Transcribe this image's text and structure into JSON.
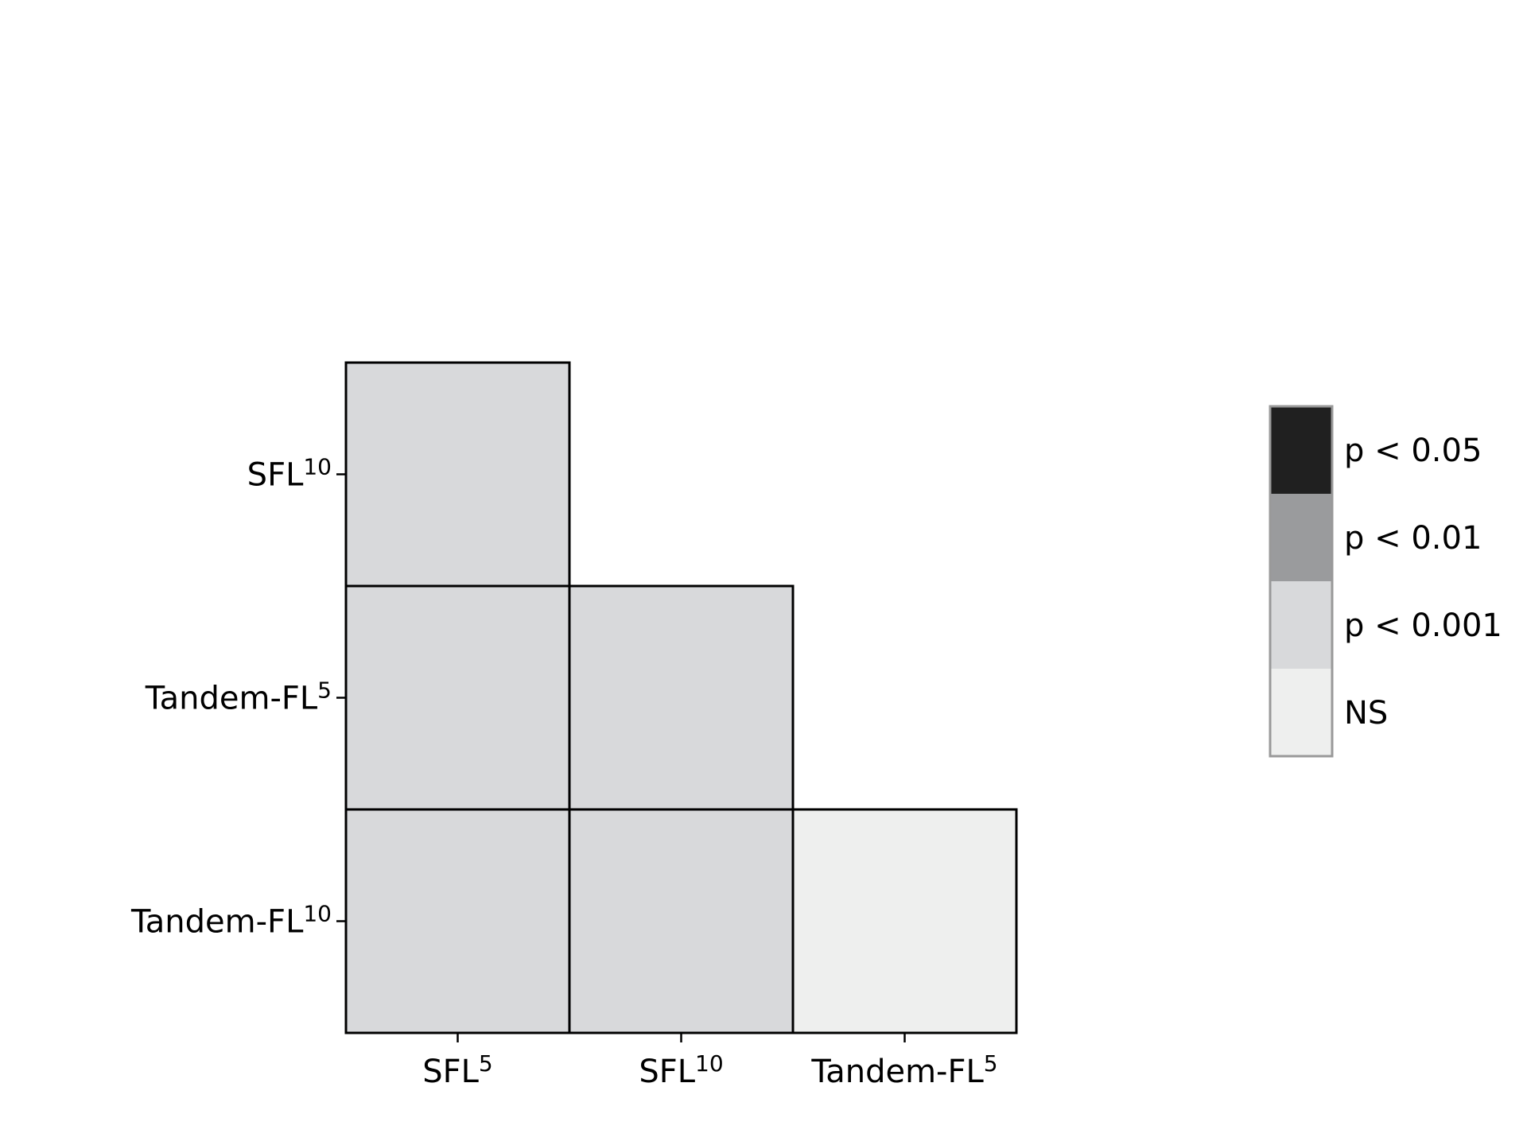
{
  "chart_data": {
    "type": "heatmap",
    "title": "",
    "xlabel": "",
    "ylabel": "",
    "x_categories": [
      {
        "base": "SFL",
        "sup": "5"
      },
      {
        "base": "SFL",
        "sup": "10"
      },
      {
        "base": "Tandem-FL",
        "sup": "5"
      }
    ],
    "y_categories": [
      {
        "base": "SFL",
        "sup": "10"
      },
      {
        "base": "Tandem-FL",
        "sup": "5"
      },
      {
        "base": "Tandem-FL",
        "sup": "10"
      }
    ],
    "cells": [
      {
        "x": 0,
        "y": 0,
        "level": "p < 0.001"
      },
      {
        "x": 0,
        "y": 1,
        "level": "p < 0.001"
      },
      {
        "x": 1,
        "y": 1,
        "level": "p < 0.001"
      },
      {
        "x": 0,
        "y": 2,
        "level": "p < 0.001"
      },
      {
        "x": 1,
        "y": 2,
        "level": "p < 0.001"
      },
      {
        "x": 2,
        "y": 2,
        "level": "NS"
      }
    ],
    "legend": {
      "placement": "right",
      "entries": [
        {
          "label": "p < 0.05",
          "color": "#202020"
        },
        {
          "label": "p < 0.01",
          "color": "#9a9b9d"
        },
        {
          "label": "p < 0.001",
          "color": "#d8d9db"
        },
        {
          "label": "NS",
          "color": "#eeefee"
        }
      ]
    },
    "grid": false
  }
}
